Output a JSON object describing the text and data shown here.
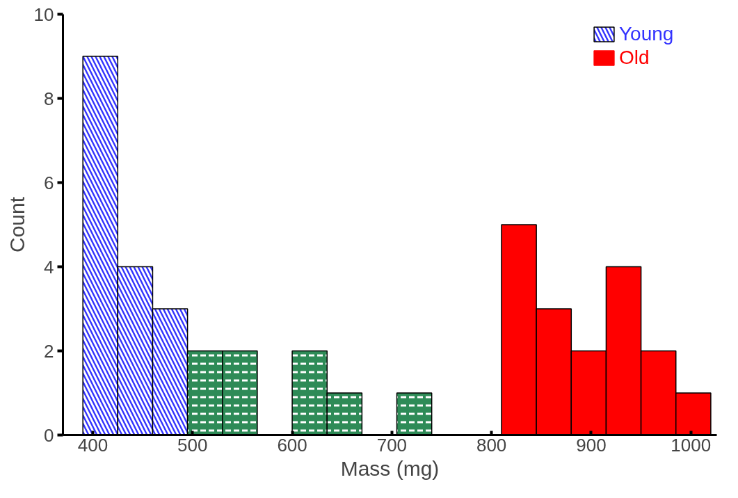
{
  "chart_data": {
    "type": "histogram",
    "xlabel": "Mass (mg)",
    "ylabel": "Count",
    "bins": [
      390,
      425,
      460,
      495,
      530,
      565,
      600,
      635,
      670,
      705,
      740,
      775,
      810,
      845,
      880,
      915,
      950,
      985,
      1020
    ],
    "series": [
      {
        "name": "Young",
        "color": "#3333ff",
        "values": [
          9,
          4,
          3,
          0,
          0,
          0,
          0,
          0,
          0,
          0,
          0,
          0,
          0,
          0,
          0,
          0,
          0,
          0
        ]
      },
      {
        "color": "#2e8b57",
        "values": [
          0,
          0,
          0,
          2,
          2,
          0,
          2,
          1,
          0,
          1,
          0,
          0,
          0,
          0,
          0,
          0,
          0,
          0
        ]
      },
      {
        "name": "Old",
        "color": "#ff0000",
        "values": [
          0,
          0,
          0,
          0,
          0,
          0,
          0,
          0,
          0,
          0,
          0,
          0,
          5,
          3,
          2,
          4,
          2,
          1
        ]
      }
    ],
    "xlim": [
      370,
      1026
    ],
    "ylim": [
      0,
      10
    ],
    "xticks": [
      400,
      500,
      600,
      700,
      800,
      900,
      1000
    ],
    "yticks": [
      0,
      2,
      4,
      6,
      8,
      10
    ],
    "grid": false,
    "legend": "top right"
  }
}
